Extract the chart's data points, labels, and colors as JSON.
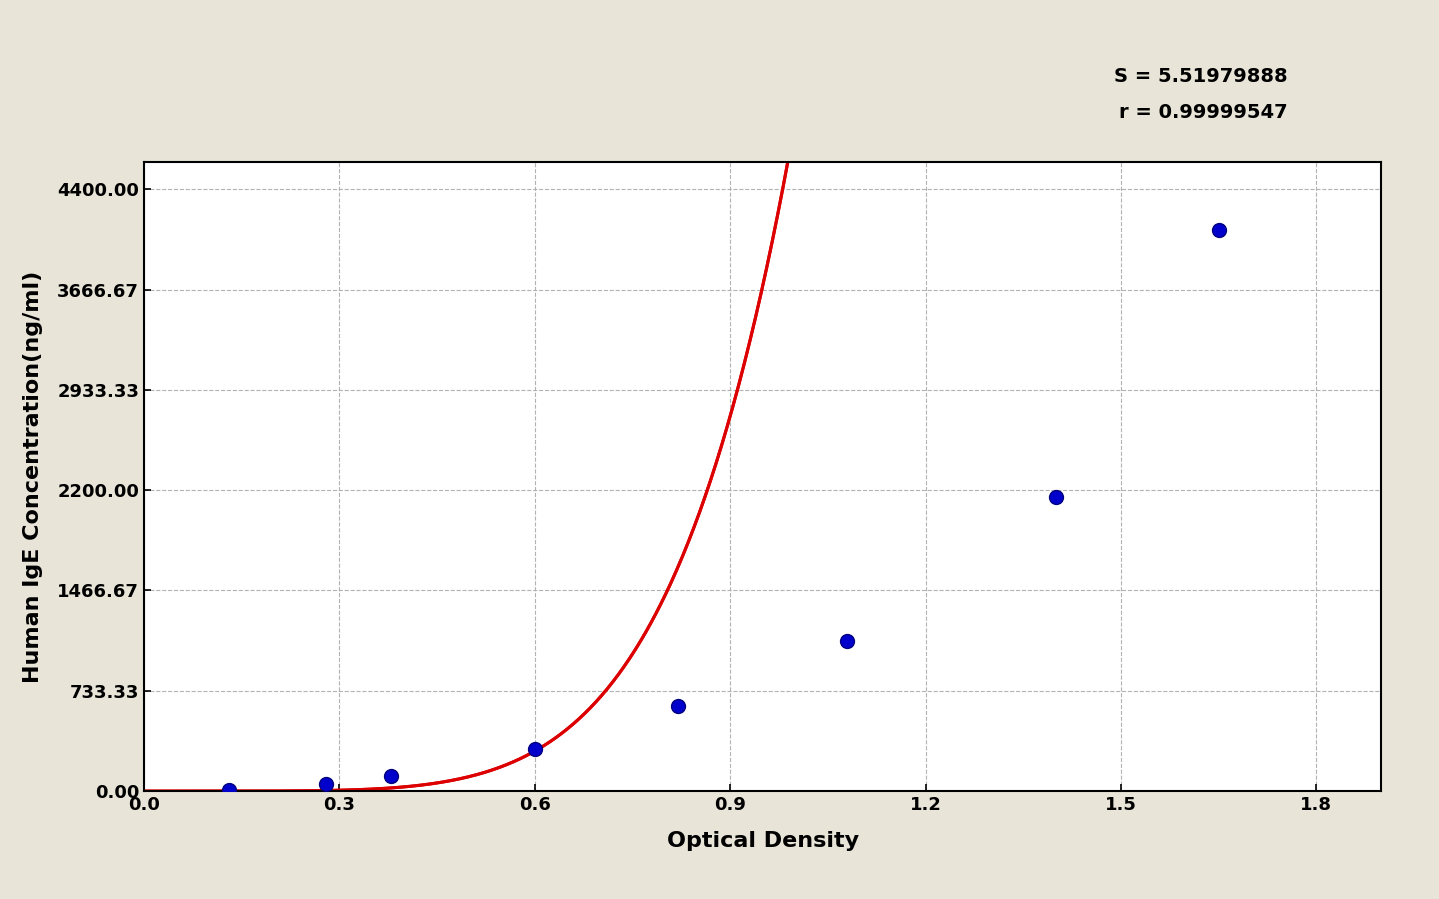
{
  "background_color": "#e8e4d8",
  "plot_bg_color": "#ffffff",
  "title_s": "S = 5.51979888",
  "title_r": "r = 0.99999547",
  "xlabel": "Optical Density",
  "ylabel": "Human IgE Concentration(ng/ml)",
  "xlim": [
    0.0,
    1.9
  ],
  "ylim": [
    0.0,
    4600.0
  ],
  "yticks": [
    0.0,
    733.33,
    1466.67,
    2200.0,
    2933.33,
    3666.67,
    4400.0
  ],
  "ytick_labels": [
    "0.00",
    "733.33",
    "1466.67",
    "2200.00",
    "2933.33",
    "3666.67",
    "4400.00"
  ],
  "xticks": [
    0.0,
    0.3,
    0.6,
    0.9,
    1.2,
    1.5,
    1.8
  ],
  "xtick_labels": [
    "0.0",
    "0.3",
    "0.6",
    "0.9",
    "1.2",
    "1.5",
    "1.8"
  ],
  "data_points_x": [
    0.13,
    0.28,
    0.38,
    0.6,
    0.82,
    1.08,
    1.4,
    1.65
  ],
  "data_points_y": [
    5.0,
    55.0,
    110.0,
    310.0,
    620.0,
    1100.0,
    2150.0,
    4100.0
  ],
  "S": 5.51979888,
  "a": 4800.0,
  "curve_color": "#dd0000",
  "dot_color": "#0000cc",
  "dot_size": 100,
  "dot_edge_color": "#000080",
  "dot_edge_width": 1.0,
  "annotation_fontsize": 14,
  "axis_label_fontsize": 16,
  "tick_fontsize": 13
}
